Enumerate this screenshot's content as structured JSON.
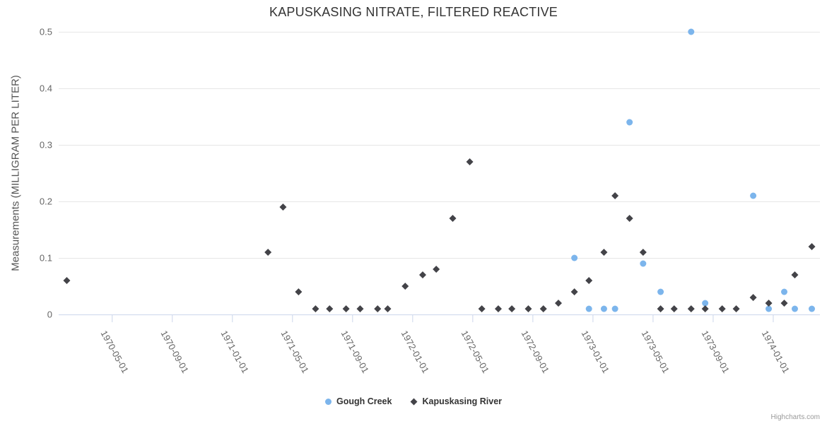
{
  "chart": {
    "credit": "Highcharts.com"
  },
  "chart_data": {
    "type": "scatter",
    "title": "KAPUSKASING NITRATE, FILTERED REACTIVE",
    "xlabel": "",
    "ylabel": "Measurements (MILLIGRAM PER LITER)",
    "ylim": [
      0,
      0.5
    ],
    "yticks": [
      0,
      0.1,
      0.2,
      0.3,
      0.4,
      0.5
    ],
    "xlim": [
      "1970-01-15",
      "1974-04-05"
    ],
    "xticks": [
      "1970-05-01",
      "1970-09-01",
      "1971-01-01",
      "1971-05-01",
      "1971-09-01",
      "1972-01-01",
      "1972-05-01",
      "1972-09-01",
      "1973-01-01",
      "1973-05-01",
      "1973-09-01",
      "1974-01-01"
    ],
    "grid": true,
    "legend_position": "bottom-center",
    "series": [
      {
        "name": "Gough Creek",
        "color": "#7cb5ec",
        "marker": "circle",
        "points": [
          [
            "1972-11-25",
            0.1
          ],
          [
            "1972-12-24",
            0.01
          ],
          [
            "1973-01-24",
            0.01
          ],
          [
            "1973-02-16",
            0.01
          ],
          [
            "1973-03-15",
            0.34
          ],
          [
            "1973-04-12",
            0.09
          ],
          [
            "1973-05-17",
            0.04
          ],
          [
            "1973-07-18",
            0.5
          ],
          [
            "1973-08-16",
            0.02
          ],
          [
            "1973-11-22",
            0.21
          ],
          [
            "1973-12-23",
            0.01
          ],
          [
            "1974-01-24",
            0.04
          ],
          [
            "1974-02-15",
            0.01
          ],
          [
            "1974-03-19",
            0.01
          ]
        ]
      },
      {
        "name": "Kapuskasing River",
        "color": "#434348",
        "marker": "diamond",
        "points": [
          [
            "1970-02-01",
            0.06
          ],
          [
            "1971-03-13",
            0.11
          ],
          [
            "1971-04-13",
            0.19
          ],
          [
            "1971-05-14",
            0.04
          ],
          [
            "1971-06-18",
            0.01
          ],
          [
            "1971-07-16",
            0.01
          ],
          [
            "1971-08-19",
            0.01
          ],
          [
            "1971-09-17",
            0.01
          ],
          [
            "1971-10-22",
            0.01
          ],
          [
            "1971-11-12",
            0.01
          ],
          [
            "1971-12-17",
            0.05
          ],
          [
            "1972-01-22",
            0.07
          ],
          [
            "1972-02-19",
            0.08
          ],
          [
            "1972-03-22",
            0.17
          ],
          [
            "1972-04-26",
            0.27
          ],
          [
            "1972-05-20",
            0.01
          ],
          [
            "1972-06-23",
            0.01
          ],
          [
            "1972-07-20",
            0.01
          ],
          [
            "1972-08-23",
            0.01
          ],
          [
            "1972-09-23",
            0.01
          ],
          [
            "1972-10-23",
            0.02
          ],
          [
            "1972-11-25",
            0.04
          ],
          [
            "1972-12-24",
            0.06
          ],
          [
            "1973-01-24",
            0.11
          ],
          [
            "1973-02-16",
            0.21
          ],
          [
            "1973-03-15",
            0.17
          ],
          [
            "1973-04-12",
            0.11
          ],
          [
            "1973-05-17",
            0.01
          ],
          [
            "1973-06-14",
            0.01
          ],
          [
            "1973-07-18",
            0.01
          ],
          [
            "1973-08-16",
            0.01
          ],
          [
            "1973-09-20",
            0.01
          ],
          [
            "1973-10-18",
            0.01
          ],
          [
            "1973-11-22",
            0.03
          ],
          [
            "1973-12-23",
            0.02
          ],
          [
            "1974-01-24",
            0.02
          ],
          [
            "1974-02-15",
            0.07
          ],
          [
            "1974-03-19",
            0.12
          ]
        ]
      }
    ],
    "colors": {
      "grid_line": "#e6e6e6",
      "axis_line": "#ccd6eb",
      "tick_label": "#666666",
      "title_text": "#333333"
    }
  }
}
